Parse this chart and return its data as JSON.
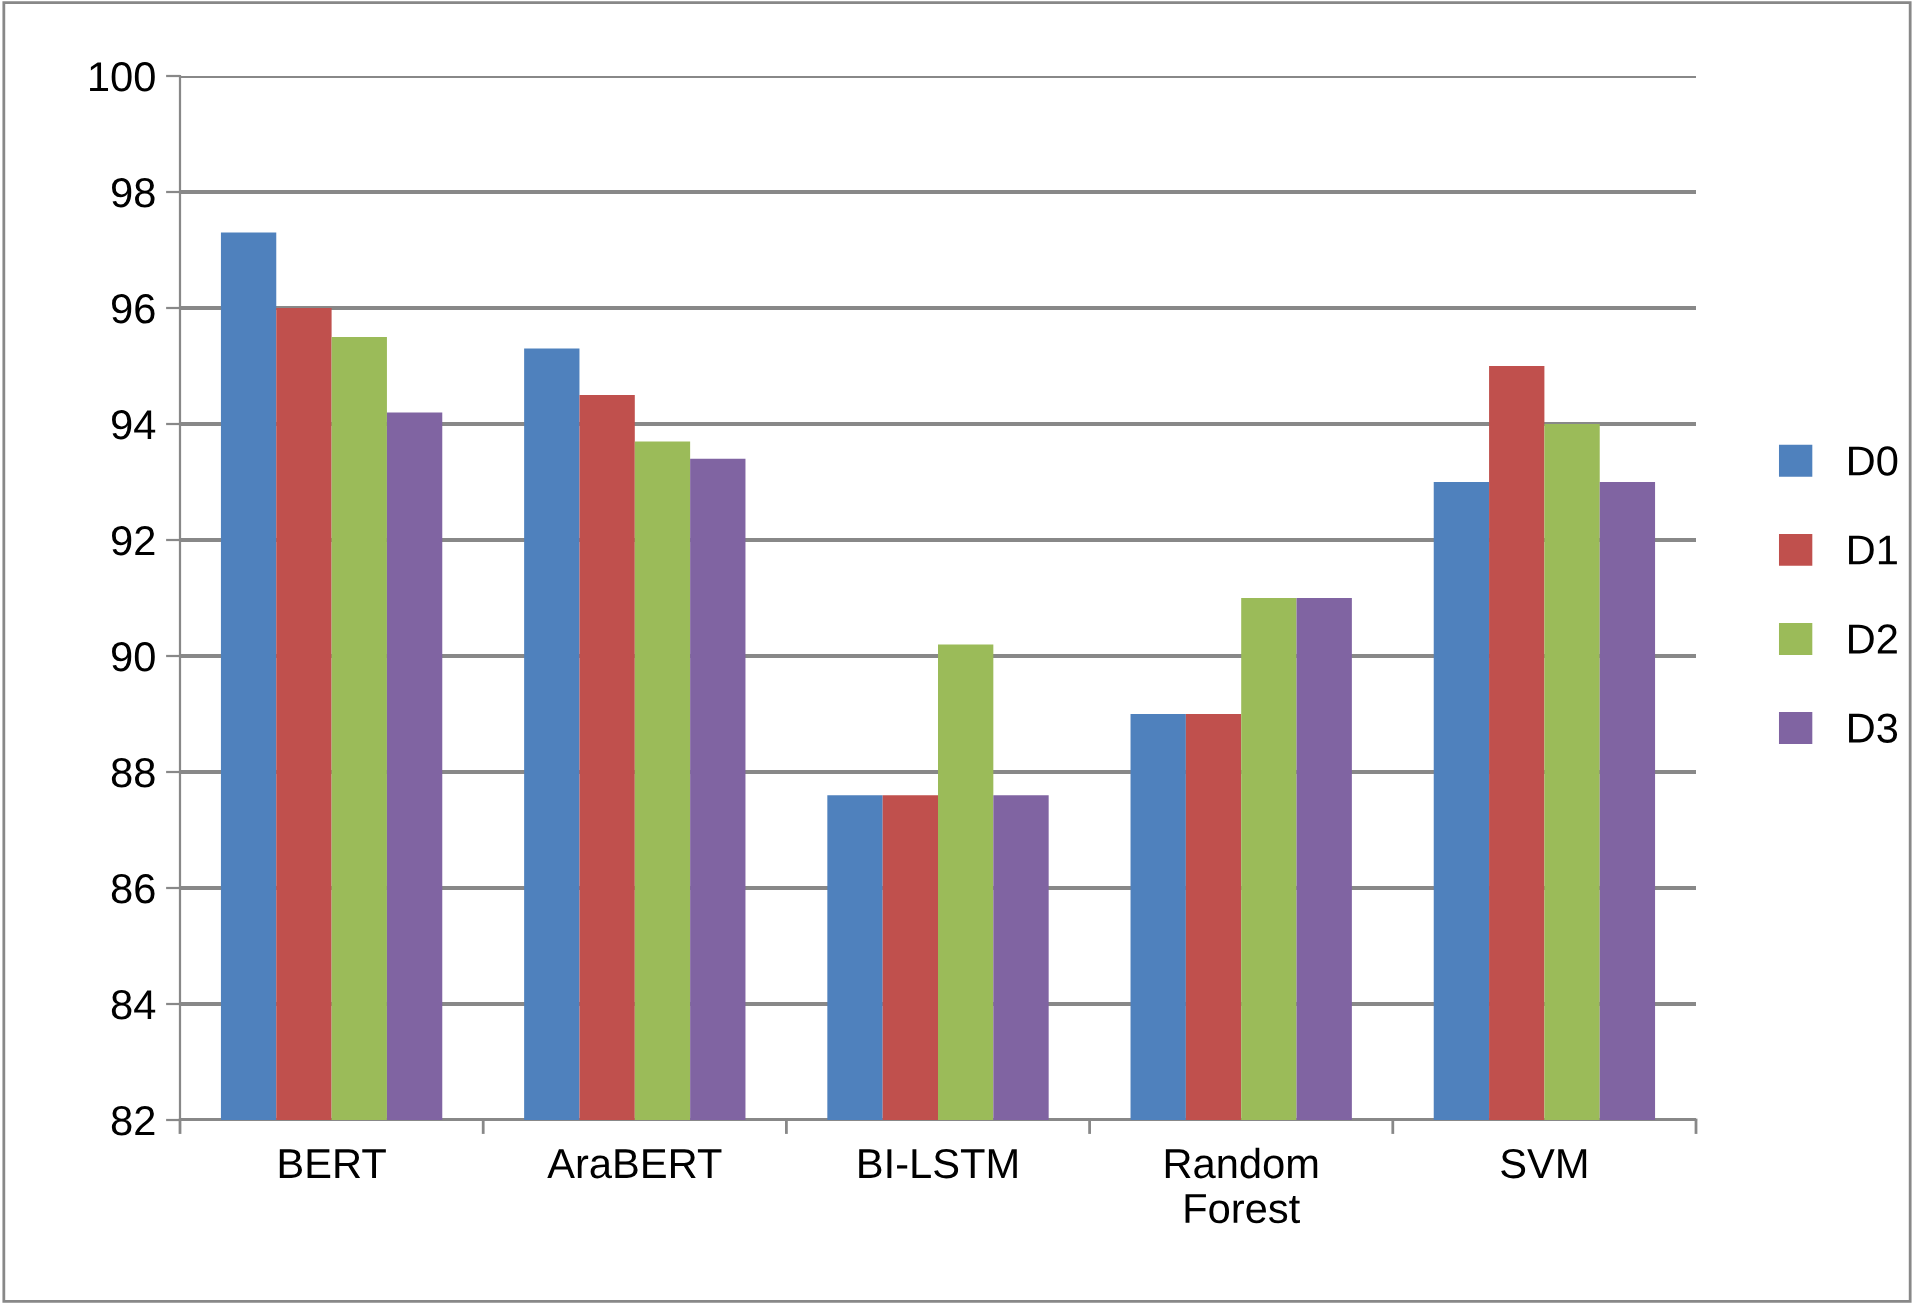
{
  "chart_data": {
    "type": "bar",
    "categories": [
      "BERT",
      "AraBERT",
      "BI-LSTM",
      "Random\nForest",
      "SVM"
    ],
    "series": [
      {
        "name": "D0",
        "color": "#4f81bd",
        "values": [
          97.3,
          95.3,
          87.6,
          89,
          93
        ]
      },
      {
        "name": "D1",
        "color": "#c0504d",
        "values": [
          96.0,
          94.5,
          87.6,
          89,
          95
        ]
      },
      {
        "name": "D2",
        "color": "#9bbb59",
        "values": [
          95.5,
          93.7,
          90.2,
          91,
          94
        ]
      },
      {
        "name": "D3",
        "color": "#8064a2",
        "values": [
          94.2,
          93.4,
          87.6,
          91,
          93
        ]
      }
    ],
    "ylim": [
      82,
      100
    ],
    "yticks": [
      82,
      84,
      86,
      88,
      90,
      92,
      94,
      96,
      98,
      100
    ],
    "grid": "y",
    "legend": "right"
  }
}
